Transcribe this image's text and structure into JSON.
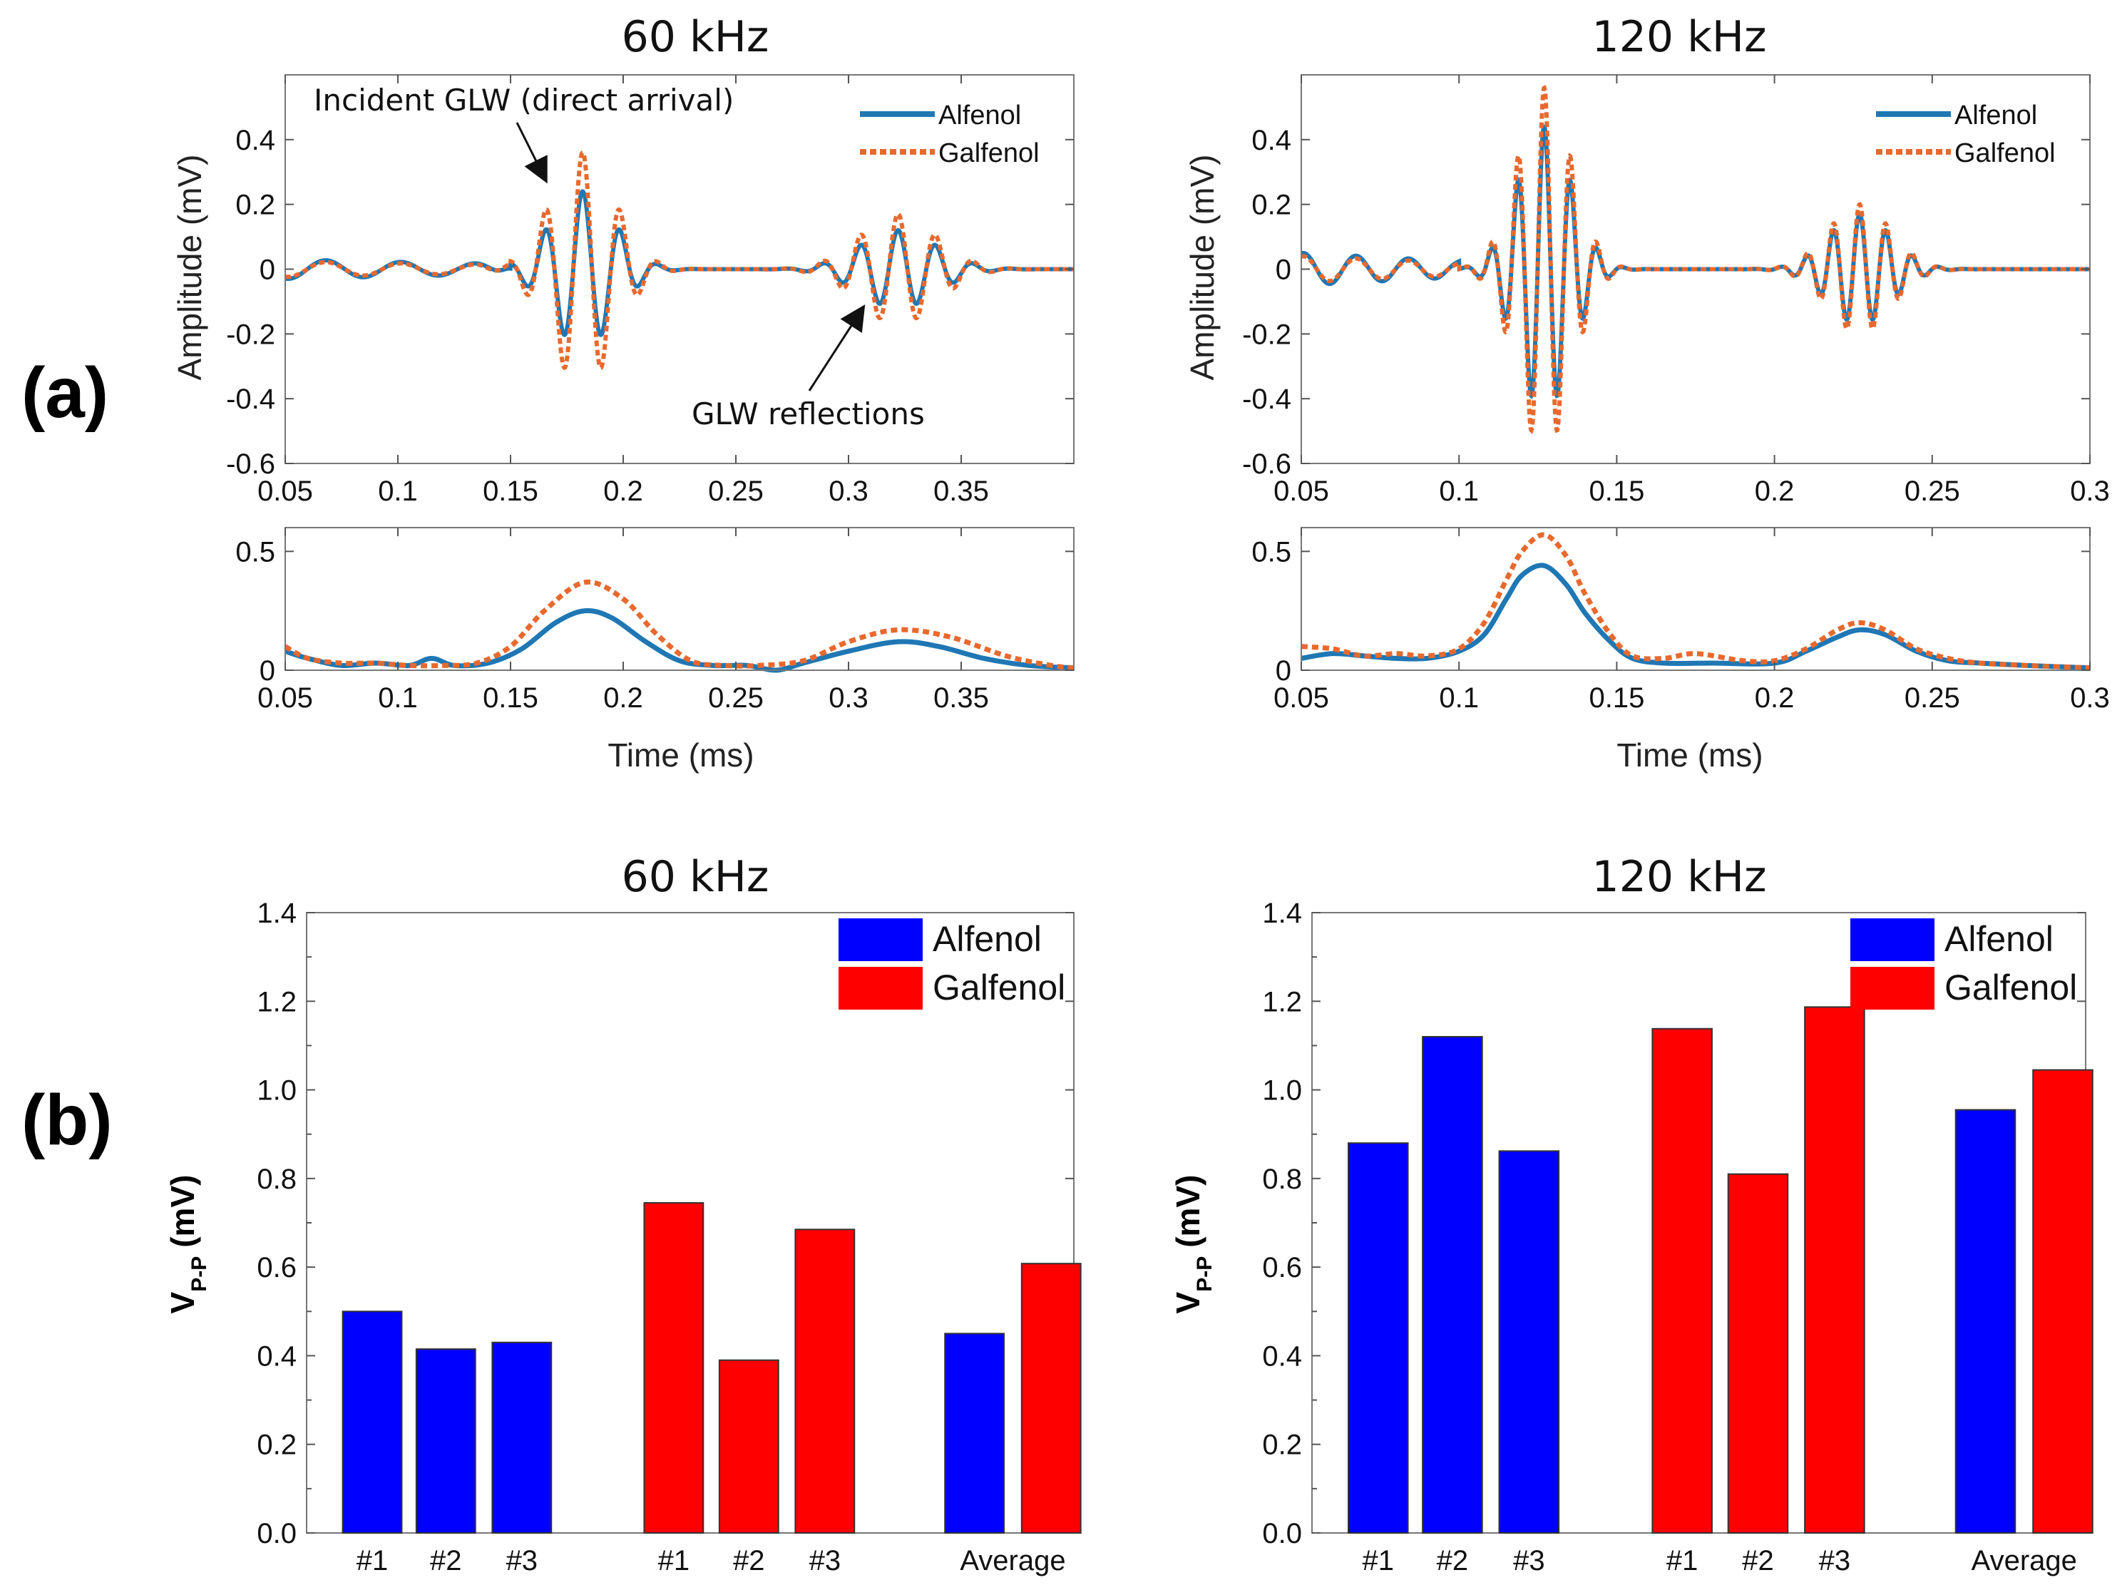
{
  "panel_labels": {
    "a": "(a)",
    "b": "(b)"
  },
  "colors": {
    "alfenol_line": "#1f77b4",
    "galfenol_line": "#e8692e",
    "alfenol_bar": "#0000ff",
    "galfenol_bar": "#ff0000"
  },
  "chart_data": [
    {
      "id": "a60",
      "type": "line",
      "title": "60 kHz",
      "ylabel": "Amplitude (mV)",
      "xlabel": "",
      "xlim": [
        0.05,
        0.4
      ],
      "ylim": [
        -0.6,
        0.6
      ],
      "xticks": [
        0.05,
        0.1,
        0.15,
        0.2,
        0.25,
        0.3,
        0.35
      ],
      "xticklabels": [
        "0.05",
        "0.1",
        "0.15",
        "0.2",
        "0.25",
        "0.3",
        "0.35"
      ],
      "yticks": [
        -0.6,
        -0.4,
        -0.2,
        0,
        0.2,
        0.4
      ],
      "yticklabels": [
        "-0.6",
        "-0.4",
        "-0.2",
        "0",
        "0.2",
        "0.4"
      ],
      "legend": [
        "Alfenol",
        "Galfenol"
      ],
      "annotations": [
        "Incident GLW (direct arrival)",
        "GLW reflections"
      ],
      "signal": {
        "frequency_khz": 60,
        "noise": {
          "amplitude": 0.03,
          "start": 0.05,
          "end": 0.15
        },
        "packets": [
          {
            "center": 0.182,
            "width": 0.02,
            "alfenol_amp": 0.24,
            "galfenol_amp": 0.36
          },
          {
            "center": 0.322,
            "width": 0.024,
            "alfenol_amp": 0.12,
            "galfenol_amp": 0.17
          }
        ]
      }
    },
    {
      "id": "a60env",
      "type": "line",
      "xlabel": "Time (ms)",
      "xlim": [
        0.05,
        0.4
      ],
      "ylim": [
        0,
        0.6
      ],
      "xticks": [
        0.05,
        0.1,
        0.15,
        0.2,
        0.25,
        0.3,
        0.35
      ],
      "xticklabels": [
        "0.05",
        "0.1",
        "0.15",
        "0.2",
        "0.25",
        "0.3",
        "0.35"
      ],
      "yticks": [
        0,
        0.5
      ],
      "yticklabels": [
        "0",
        "0.5"
      ],
      "series": [
        {
          "name": "Alfenol",
          "x": [
            0.05,
            0.06,
            0.075,
            0.09,
            0.105,
            0.115,
            0.125,
            0.14,
            0.155,
            0.17,
            0.183,
            0.195,
            0.21,
            0.225,
            0.24,
            0.255,
            0.268,
            0.28,
            0.3,
            0.322,
            0.34,
            0.36,
            0.38,
            0.4
          ],
          "y": [
            0.08,
            0.05,
            0.02,
            0.03,
            0.02,
            0.05,
            0.02,
            0.03,
            0.09,
            0.2,
            0.25,
            0.22,
            0.12,
            0.04,
            0.02,
            0.02,
            0.0,
            0.03,
            0.08,
            0.12,
            0.1,
            0.05,
            0.02,
            0.01
          ]
        },
        {
          "name": "Galfenol",
          "x": [
            0.05,
            0.06,
            0.075,
            0.09,
            0.105,
            0.12,
            0.135,
            0.15,
            0.165,
            0.183,
            0.2,
            0.215,
            0.23,
            0.245,
            0.26,
            0.28,
            0.3,
            0.322,
            0.345,
            0.37,
            0.39,
            0.4
          ],
          "y": [
            0.1,
            0.05,
            0.03,
            0.03,
            0.02,
            0.02,
            0.03,
            0.1,
            0.25,
            0.37,
            0.3,
            0.15,
            0.04,
            0.02,
            0.02,
            0.04,
            0.12,
            0.17,
            0.14,
            0.06,
            0.02,
            0.01
          ]
        }
      ]
    },
    {
      "id": "a120",
      "type": "line",
      "title": "120 kHz",
      "ylabel": "Amplitude (mV)",
      "xlabel": "",
      "xlim": [
        0.05,
        0.3
      ],
      "ylim": [
        -0.6,
        0.6
      ],
      "xticks": [
        0.05,
        0.1,
        0.15,
        0.2,
        0.25,
        0.3
      ],
      "xticklabels": [
        "0.05",
        "0.1",
        "0.15",
        "0.2",
        "0.25",
        "0.3"
      ],
      "yticks": [
        -0.6,
        -0.4,
        -0.2,
        0,
        0.2,
        0.4
      ],
      "yticklabels": [
        "-0.6",
        "-0.4",
        "-0.2",
        "0",
        "0.2",
        "0.4"
      ],
      "legend": [
        "Alfenol",
        "Galfenol"
      ],
      "signal": {
        "frequency_khz": 120,
        "noise": {
          "amplitude": 0.05,
          "start": 0.05,
          "end": 0.1
        },
        "packets": [
          {
            "center": 0.127,
            "width": 0.012,
            "alfenol_amp": 0.44,
            "galfenol_amp": 0.56
          },
          {
            "center": 0.227,
            "width": 0.014,
            "alfenol_amp": 0.17,
            "galfenol_amp": 0.2
          }
        ]
      }
    },
    {
      "id": "a120env",
      "type": "line",
      "xlabel": "Time (ms)",
      "xlim": [
        0.05,
        0.3
      ],
      "ylim": [
        0,
        0.6
      ],
      "xticks": [
        0.05,
        0.1,
        0.15,
        0.2,
        0.25,
        0.3
      ],
      "xticklabels": [
        "0.05",
        "0.1",
        "0.15",
        "0.2",
        "0.25",
        "0.3"
      ],
      "yticks": [
        0,
        0.5
      ],
      "yticklabels": [
        "0",
        "0.5"
      ],
      "series": [
        {
          "name": "Alfenol",
          "x": [
            0.05,
            0.06,
            0.07,
            0.08,
            0.09,
            0.1,
            0.108,
            0.115,
            0.12,
            0.127,
            0.134,
            0.14,
            0.148,
            0.155,
            0.165,
            0.18,
            0.2,
            0.21,
            0.22,
            0.227,
            0.235,
            0.245,
            0.255,
            0.265,
            0.28,
            0.3
          ],
          "y": [
            0.05,
            0.07,
            0.06,
            0.05,
            0.05,
            0.08,
            0.15,
            0.3,
            0.4,
            0.44,
            0.36,
            0.24,
            0.12,
            0.05,
            0.03,
            0.03,
            0.03,
            0.08,
            0.14,
            0.17,
            0.15,
            0.08,
            0.04,
            0.03,
            0.02,
            0.01
          ]
        },
        {
          "name": "Galfenol",
          "x": [
            0.05,
            0.06,
            0.07,
            0.08,
            0.09,
            0.1,
            0.108,
            0.115,
            0.12,
            0.127,
            0.134,
            0.14,
            0.148,
            0.155,
            0.165,
            0.175,
            0.19,
            0.2,
            0.21,
            0.22,
            0.227,
            0.235,
            0.245,
            0.255,
            0.265,
            0.28,
            0.3
          ],
          "y": [
            0.1,
            0.09,
            0.06,
            0.07,
            0.06,
            0.09,
            0.2,
            0.38,
            0.5,
            0.57,
            0.48,
            0.32,
            0.15,
            0.06,
            0.05,
            0.07,
            0.04,
            0.04,
            0.09,
            0.17,
            0.2,
            0.17,
            0.09,
            0.05,
            0.03,
            0.02,
            0.01
          ]
        }
      ]
    },
    {
      "id": "b60",
      "type": "bar",
      "title": "60 kHz",
      "ylabel": "V",
      "ylabel_sub": "P-P",
      "ylabel_unit": "(mV)",
      "ylim": [
        0,
        1.4
      ],
      "yticks": [
        0.0,
        0.2,
        0.4,
        0.6,
        0.8,
        1.0,
        1.2,
        1.4
      ],
      "yticklabels": [
        "0.0",
        "0.2",
        "0.4",
        "0.6",
        "0.8",
        "1.0",
        "1.2",
        "1.4"
      ],
      "legend": [
        "Alfenol",
        "Galfenol"
      ],
      "bars": [
        {
          "label": "#1",
          "series": "Alfenol",
          "value": 0.5
        },
        {
          "label": "#2",
          "series": "Alfenol",
          "value": 0.415
        },
        {
          "label": "#3",
          "series": "Alfenol",
          "value": 0.43
        },
        {
          "label": "#1",
          "series": "Galfenol",
          "value": 0.745
        },
        {
          "label": "#2",
          "series": "Galfenol",
          "value": 0.39
        },
        {
          "label": "#3",
          "series": "Galfenol",
          "value": 0.685
        },
        {
          "label": "",
          "series": "Alfenol",
          "value": 0.45
        },
        {
          "label": "",
          "series": "Galfenol",
          "value": 0.608
        }
      ],
      "group_label": "Average"
    },
    {
      "id": "b120",
      "type": "bar",
      "title": "120 kHz",
      "ylabel": "V",
      "ylabel_sub": "P-P",
      "ylabel_unit": "(mV)",
      "ylim": [
        0,
        1.4
      ],
      "yticks": [
        0.0,
        0.2,
        0.4,
        0.6,
        0.8,
        1.0,
        1.2,
        1.4
      ],
      "yticklabels": [
        "0.0",
        "0.2",
        "0.4",
        "0.6",
        "0.8",
        "1.0",
        "1.2",
        "1.4"
      ],
      "legend": [
        "Alfenol",
        "Galfenol"
      ],
      "bars": [
        {
          "label": "#1",
          "series": "Alfenol",
          "value": 0.88
        },
        {
          "label": "#2",
          "series": "Alfenol",
          "value": 1.12
        },
        {
          "label": "#3",
          "series": "Alfenol",
          "value": 0.862
        },
        {
          "label": "#1",
          "series": "Galfenol",
          "value": 1.138
        },
        {
          "label": "#2",
          "series": "Galfenol",
          "value": 0.81
        },
        {
          "label": "#3",
          "series": "Galfenol",
          "value": 1.187
        },
        {
          "label": "",
          "series": "Alfenol",
          "value": 0.955
        },
        {
          "label": "",
          "series": "Galfenol",
          "value": 1.045
        }
      ],
      "group_label": "Average"
    }
  ]
}
